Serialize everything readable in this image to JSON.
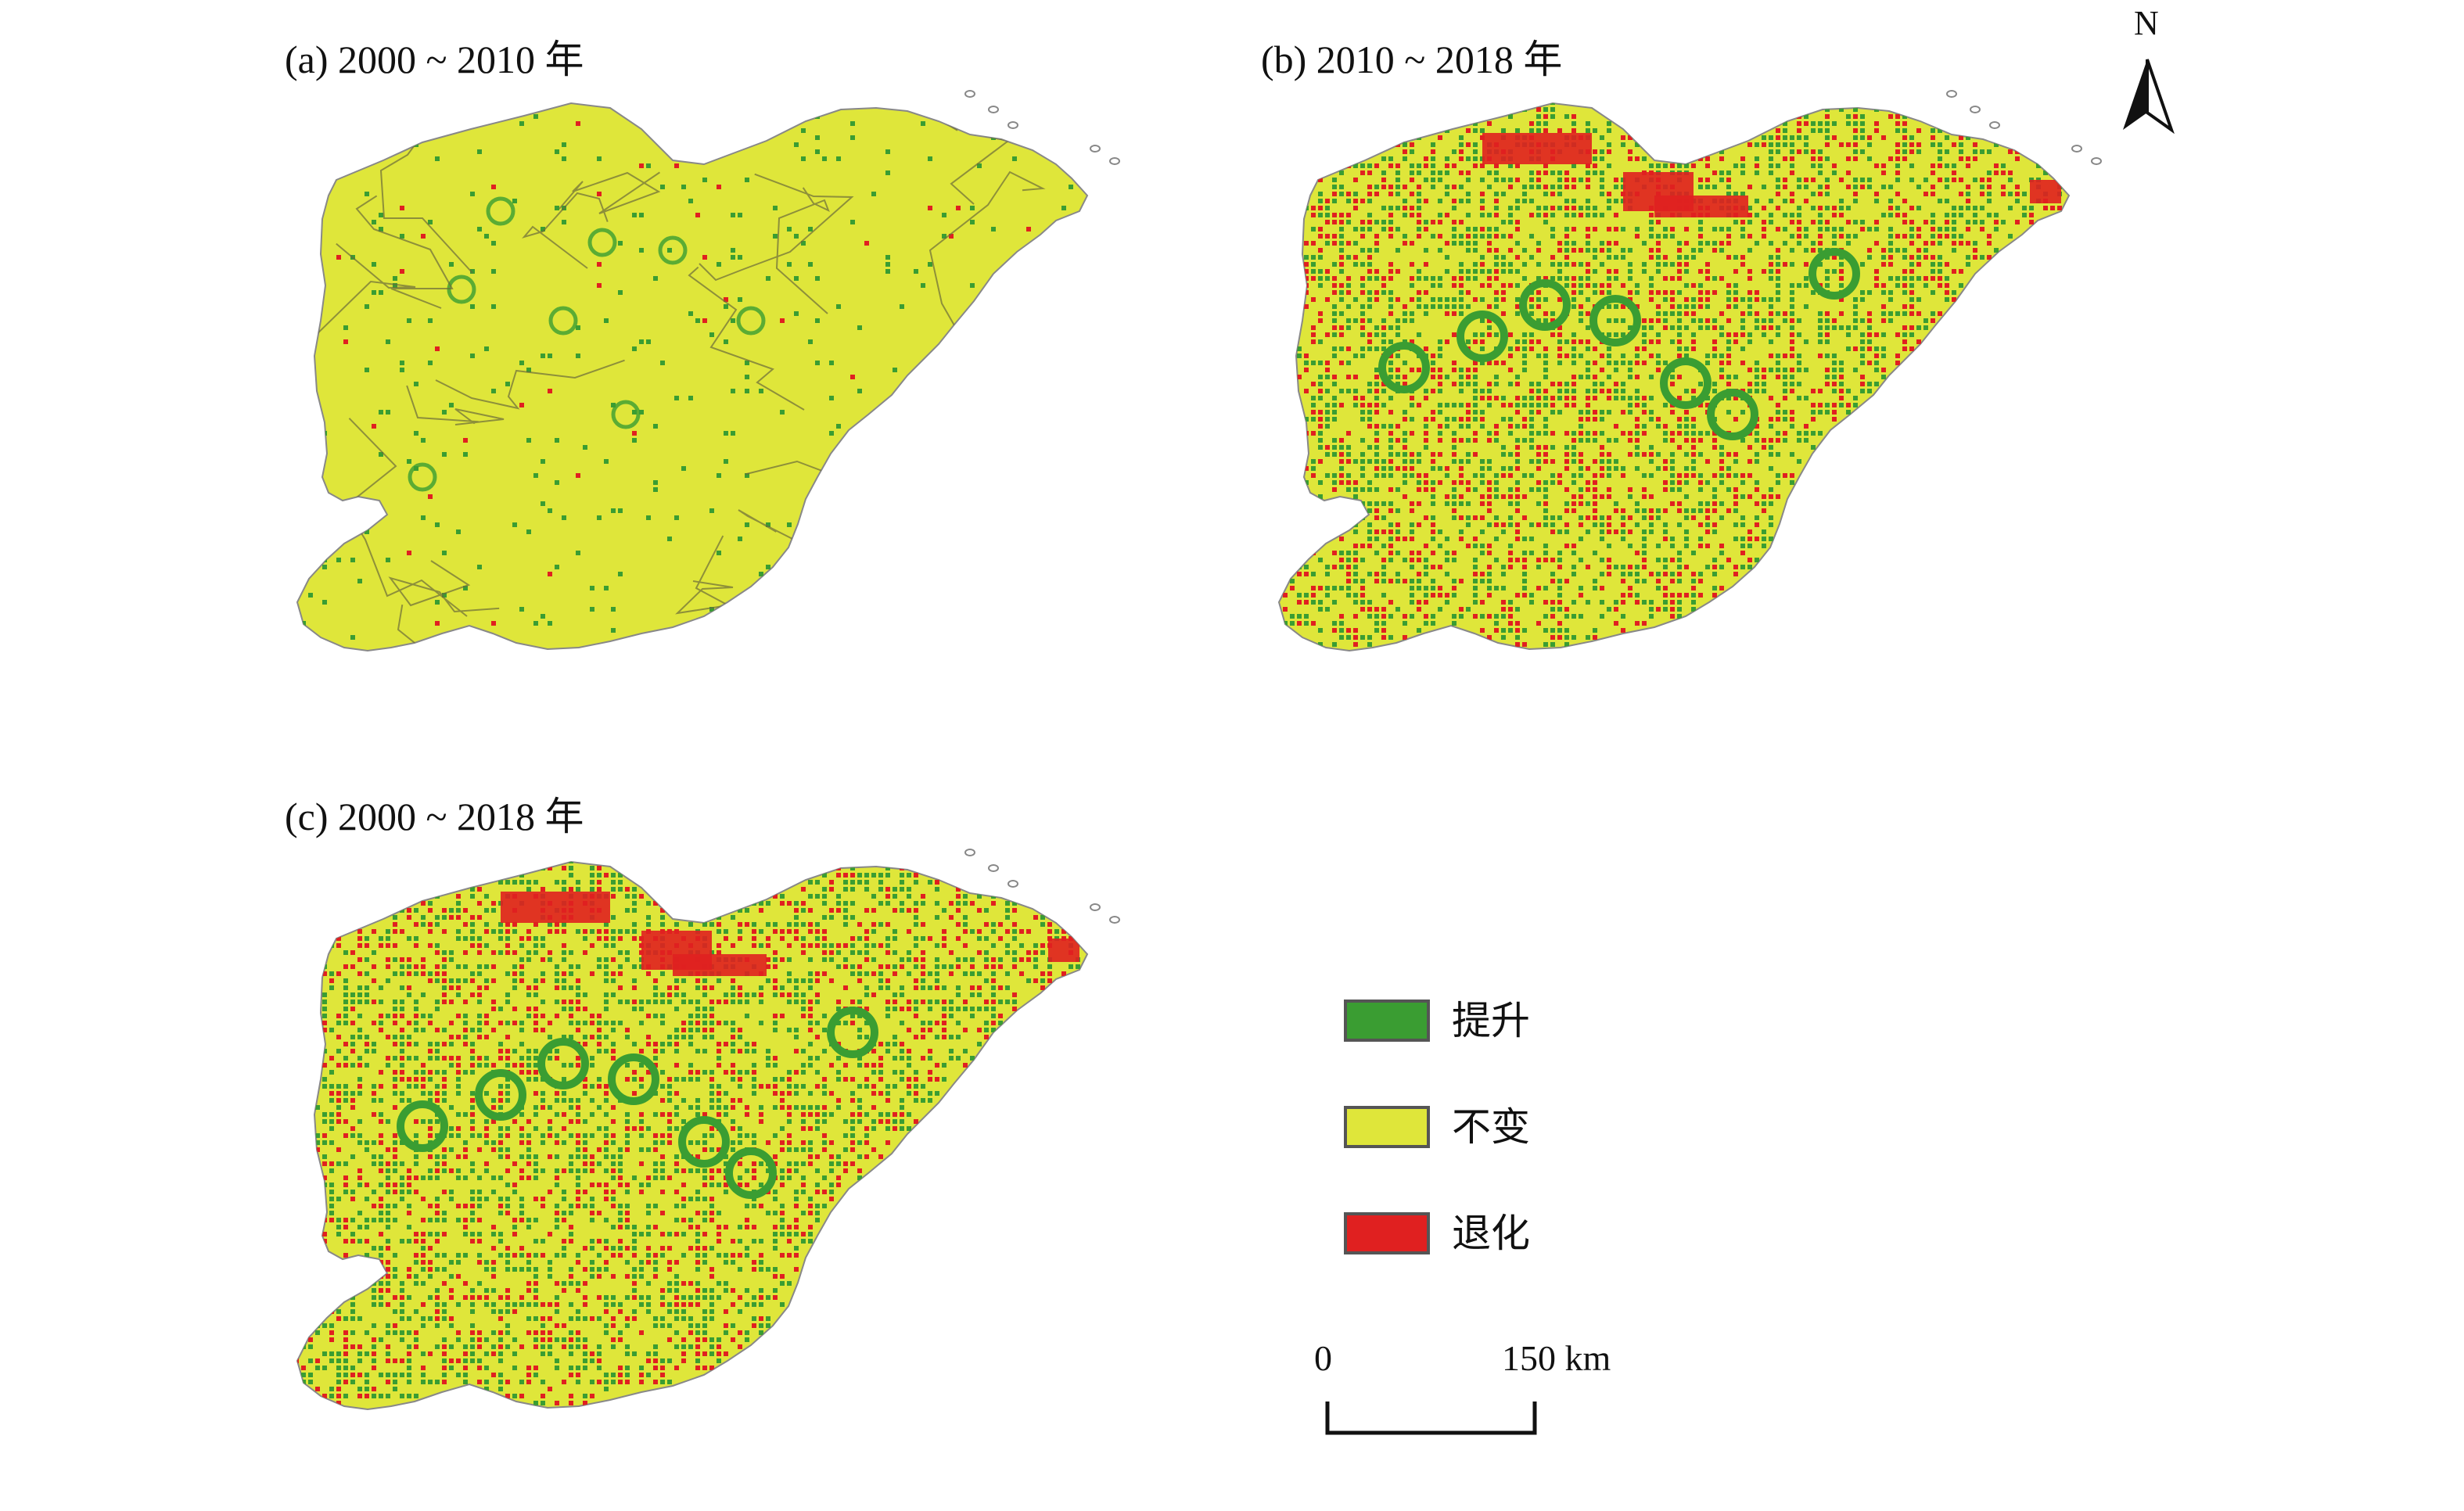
{
  "panels": [
    {
      "id": "a",
      "title": "(a) 2000 ~ 2010 年",
      "green_density": 0.04,
      "red_density": 0.006
    },
    {
      "id": "b",
      "title": "(b) 2010 ~ 2018 年",
      "green_density": 0.3,
      "red_density": 0.22
    },
    {
      "id": "c",
      "title": "(c) 2000 ~ 2018 年",
      "green_density": 0.3,
      "red_density": 0.2
    }
  ],
  "legend": {
    "items": [
      {
        "label": "提升",
        "color": "#3a9d32"
      },
      {
        "label": "不变",
        "color": "#dfe63a"
      },
      {
        "label": "退化",
        "color": "#e02020"
      }
    ]
  },
  "scale_bar": {
    "start_label": "0",
    "end_label": "150 km"
  },
  "north_arrow": {
    "label": "N",
    "icon": "north-arrow-icon"
  },
  "colors": {
    "unchanged": "#dfe63a",
    "improved": "#3a9d32",
    "degraded": "#e02020",
    "boundary": "#6b6b3a",
    "coast": "#888888"
  }
}
